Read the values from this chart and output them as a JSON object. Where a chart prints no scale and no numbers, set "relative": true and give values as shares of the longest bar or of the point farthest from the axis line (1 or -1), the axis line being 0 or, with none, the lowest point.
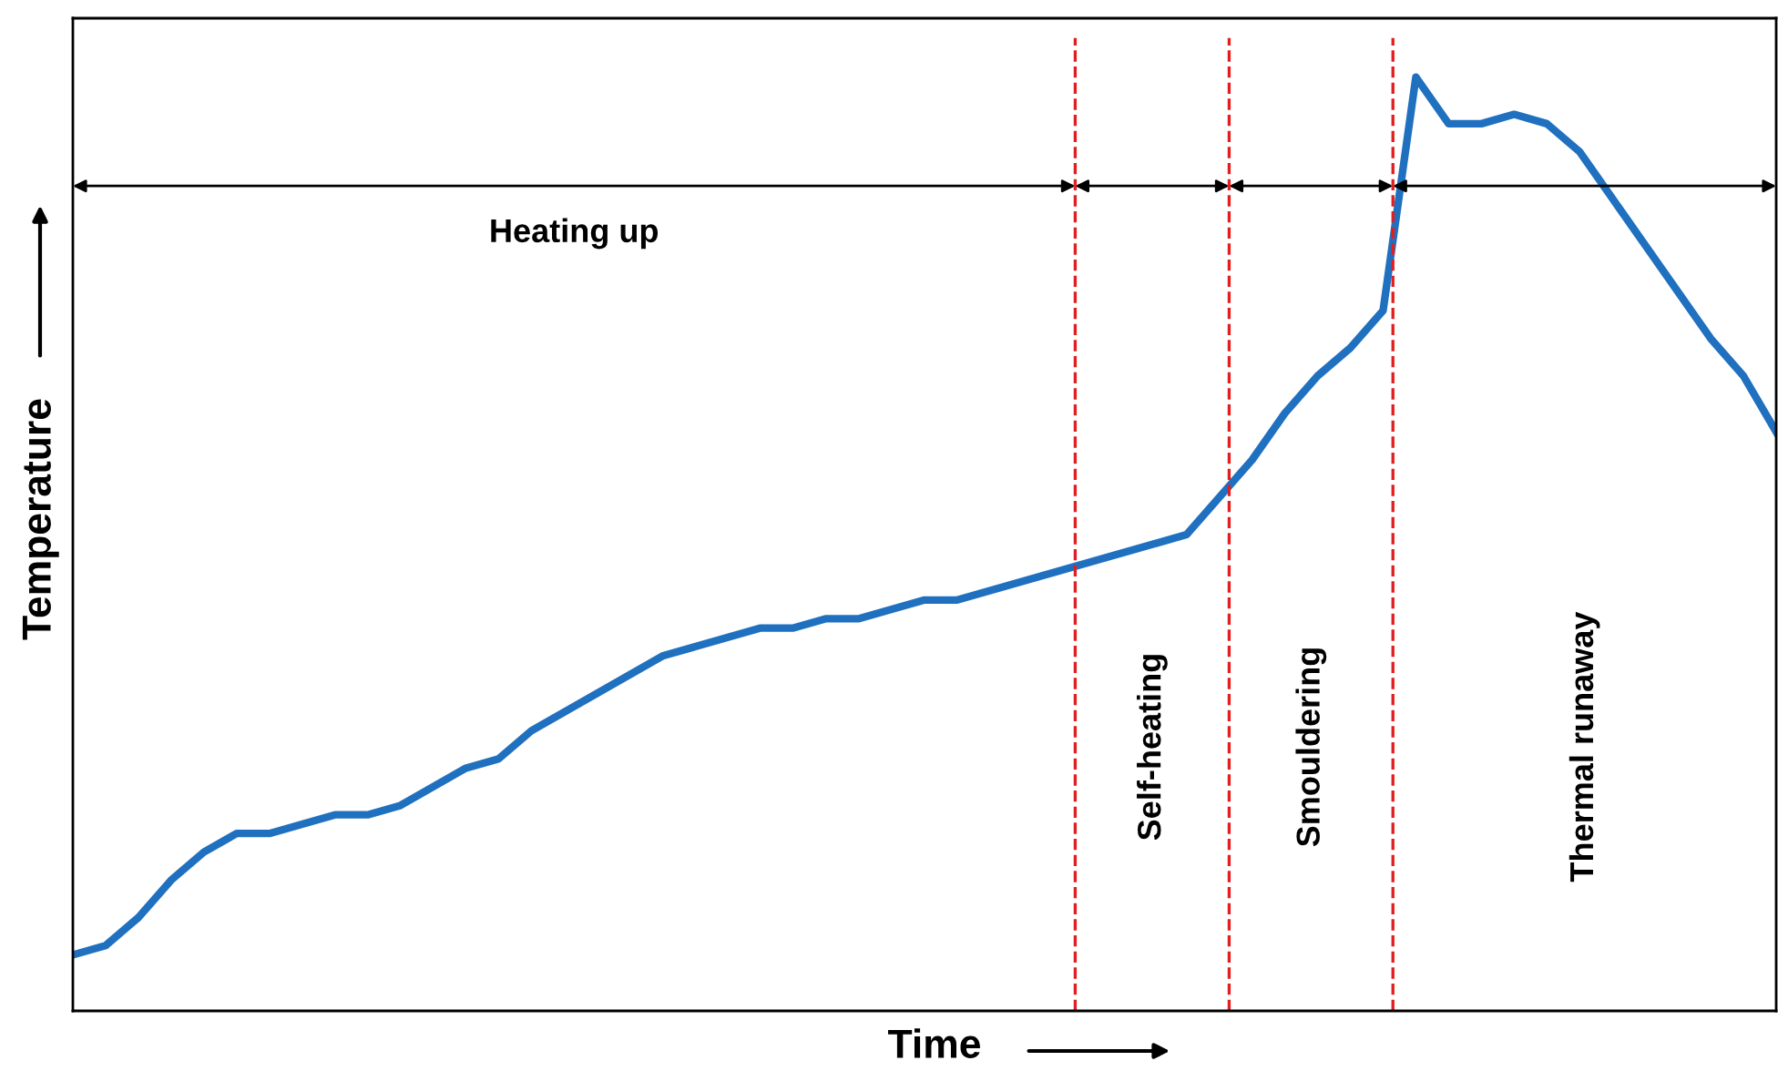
{
  "chart_data": {
    "type": "line",
    "relative": true,
    "xlabel": "Time",
    "ylabel": "Temperature",
    "marker": "none",
    "line_style": "solid",
    "categories": [
      null,
      null,
      null,
      null,
      null,
      null,
      null,
      null,
      null,
      null,
      null,
      null,
      null,
      null,
      null,
      null,
      null,
      null,
      null,
      null,
      null,
      null,
      null,
      null,
      null,
      null,
      null,
      null,
      null,
      null,
      null,
      null,
      null,
      null,
      null,
      null,
      null,
      null,
      null,
      null,
      null,
      null,
      null,
      null,
      null,
      null,
      null,
      null,
      null,
      null,
      null,
      null,
      null
    ],
    "series": [
      {
        "color": "#2070c0",
        "values": [
          0.06,
          0.07,
          0.1,
          0.14,
          0.17,
          0.19,
          0.19,
          0.2,
          0.21,
          0.21,
          0.22,
          0.24,
          0.26,
          0.27,
          0.3,
          0.32,
          0.34,
          0.36,
          0.38,
          0.39,
          0.4,
          0.41,
          0.41,
          0.42,
          0.42,
          0.43,
          0.44,
          0.44,
          0.45,
          0.46,
          0.47,
          0.48,
          0.49,
          0.5,
          0.51,
          0.55,
          0.59,
          0.64,
          0.68,
          0.71,
          0.75,
          1.0,
          0.95,
          0.95,
          0.96,
          0.95,
          0.92,
          0.87,
          0.82,
          0.77,
          0.72,
          0.68,
          0.62
        ]
      }
    ],
    "annotations": [
      "Heating up",
      "Self-heating",
      "Smouldering",
      "Thermal runaway"
    ]
  }
}
